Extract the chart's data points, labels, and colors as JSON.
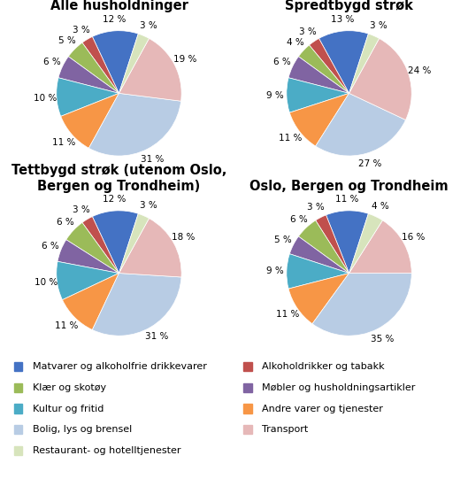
{
  "charts": [
    {
      "title": "Alle husholdninger",
      "values": [
        12,
        3,
        5,
        6,
        10,
        11,
        31,
        19,
        3
      ],
      "startangle": 72
    },
    {
      "title": "Spredtbygd strøk",
      "values": [
        13,
        3,
        4,
        6,
        9,
        11,
        27,
        24,
        3
      ],
      "startangle": 72
    },
    {
      "title": "Tettbygd strøk (utenom Oslo,\nBergen og Trondheim)",
      "values": [
        12,
        3,
        6,
        6,
        10,
        11,
        31,
        18,
        3
      ],
      "startangle": 72
    },
    {
      "title": "Oslo, Bergen og Trondheim",
      "values": [
        11,
        3,
        6,
        5,
        9,
        11,
        35,
        16,
        4
      ],
      "startangle": 72
    }
  ],
  "colors": [
    "#4472C4",
    "#C0504D",
    "#9BBB59",
    "#8064A2",
    "#4BACC6",
    "#F79646",
    "#B8CCE4",
    "#E6B8B8",
    "#D7E4BC"
  ],
  "legend_left": [
    "Matvarer og alkoholfrie drikkevarer",
    "Klær og skotøy",
    "Kultur og fritid",
    "Bolig, lys og brensel",
    "Restaurant- og hotelltjenester"
  ],
  "legend_left_colors": [
    "#4472C4",
    "#9BBB59",
    "#4BACC6",
    "#B8CCE4",
    "#D7E4BC"
  ],
  "legend_right": [
    "Alkoholdrikker og tabakk",
    "Møbler og husholdningsartikler",
    "Andre varer og tjenester",
    "Transport"
  ],
  "legend_right_colors": [
    "#C0504D",
    "#8064A2",
    "#F79646",
    "#E6B8B8"
  ],
  "bg_color": "#FFFFFF",
  "text_color": "#000000",
  "title_fontsize": 10.5,
  "label_fontsize": 7.5,
  "legend_fontsize": 8
}
